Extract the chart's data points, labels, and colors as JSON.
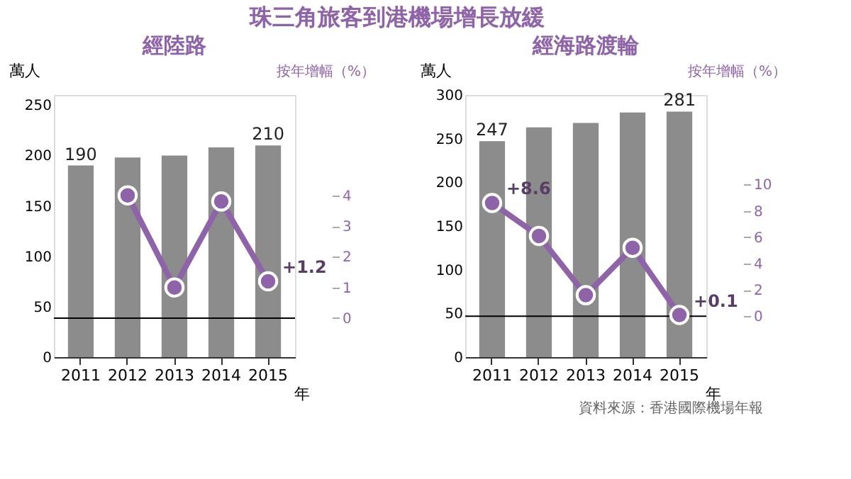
{
  "chart_data": [
    {
      "type": "bar",
      "title": "珠三角旅客到港機場增長放緩",
      "subtitle": "經陸路",
      "categories": [
        "2011",
        "2012",
        "2013",
        "2014",
        "2015"
      ],
      "xlabel": "年",
      "ylabel": "萬人",
      "y2label": "按年增幅（%）",
      "ylim": [
        0,
        260
      ],
      "yticks": [
        0,
        50,
        100,
        150,
        200,
        250
      ],
      "y2lim": [
        -1.27,
        7.27
      ],
      "y2ticks": [
        0,
        1,
        2,
        3,
        4
      ],
      "grid": false,
      "legend": false,
      "series": [
        {
          "color": "#8c8c8c",
          "values": [
            190,
            198,
            200,
            208,
            210
          ],
          "value_labels": [
            "190",
            null,
            null,
            null,
            "210"
          ]
        },
        {
          "type": "line",
          "axis": "y2",
          "color": "#8e63a8",
          "marker": "circle",
          "values": [
            null,
            4.0,
            1.0,
            3.8,
            1.2
          ],
          "value_labels": [
            null,
            null,
            null,
            null,
            "+1.2"
          ]
        }
      ],
      "ref_lines": [
        {
          "axis": "y2",
          "value": 0,
          "color": "#000000"
        }
      ]
    },
    {
      "type": "bar",
      "subtitle": "經海路渡輪",
      "categories": [
        "2011",
        "2012",
        "2013",
        "2014",
        "2015"
      ],
      "xlabel": "年",
      "ylabel": "萬人",
      "y2label": "按年增幅（%）",
      "ylim": [
        0,
        300
      ],
      "yticks": [
        0,
        50,
        100,
        150,
        200,
        250,
        300
      ],
      "y2lim": [
        -3.1,
        16.8
      ],
      "y2ticks": [
        0,
        2,
        4,
        6,
        8,
        10
      ],
      "grid": false,
      "legend": false,
      "series": [
        {
          "color": "#8c8c8c",
          "values": [
            247,
            263,
            268,
            280,
            281
          ],
          "value_labels": [
            "247",
            null,
            null,
            null,
            "281"
          ]
        },
        {
          "type": "line",
          "axis": "y2",
          "color": "#8e63a8",
          "marker": "circle",
          "values": [
            8.6,
            6.1,
            1.6,
            5.2,
            0.1
          ],
          "value_labels": [
            "+8.6",
            null,
            null,
            null,
            "+0.1"
          ]
        }
      ],
      "ref_lines": [
        {
          "axis": "y2",
          "value": 0,
          "color": "#000000"
        }
      ],
      "annotations": [
        "資料來源：香港國際機場年報"
      ]
    }
  ]
}
